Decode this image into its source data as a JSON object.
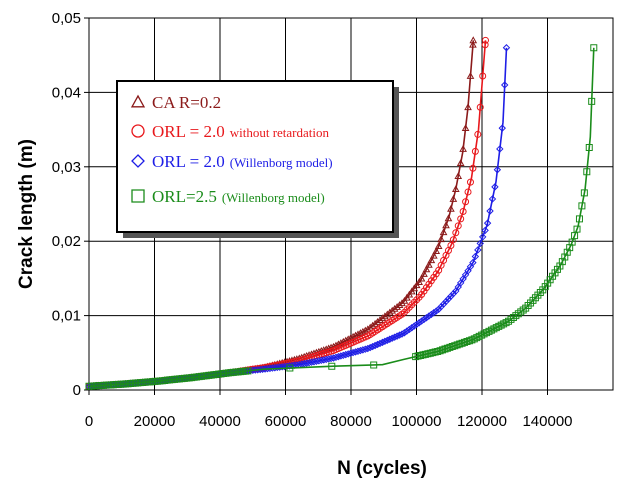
{
  "chart_data": {
    "type": "line",
    "xlabel": "N (cycles)",
    "ylabel": "Crack length (m)",
    "xlim": [
      0,
      150000
    ],
    "ylim": [
      0,
      0.05
    ],
    "x_ticks": [
      "0",
      "20000",
      "40000",
      "60000",
      "80000",
      "100000",
      "120000",
      "140000"
    ],
    "y_ticks": [
      "0",
      "0,01",
      "0,02",
      "0,03",
      "0,04",
      "0,05"
    ],
    "grid": true,
    "legend_position": "upper-left",
    "series": [
      {
        "name": "CA R=0.2",
        "legend_main": "CA  R=0.2",
        "legend_small": "",
        "color": "#8b1a1a",
        "marker": "triangle",
        "x": [
          0,
          10000,
          20000,
          30000,
          40000,
          50000,
          60000,
          70000,
          80000,
          90000,
          95000,
          100000,
          103000,
          105000,
          107000,
          108500,
          110000
        ],
        "y": [
          0.0005,
          0.0008,
          0.0012,
          0.0017,
          0.0023,
          0.003,
          0.0042,
          0.0058,
          0.0082,
          0.0118,
          0.0148,
          0.0192,
          0.0232,
          0.027,
          0.032,
          0.038,
          0.047
        ]
      },
      {
        "name": "ORL = 2.0 without retardation",
        "legend_main": "ORL = 2.0",
        "legend_small": "without retardation",
        "color": "#e8181c",
        "marker": "circle",
        "x": [
          0,
          10000,
          20000,
          30000,
          40000,
          50000,
          60000,
          70000,
          80000,
          90000,
          95000,
          100000,
          104000,
          107000,
          109500,
          111500,
          113500
        ],
        "y": [
          0.0005,
          0.0008,
          0.0012,
          0.0017,
          0.0023,
          0.003,
          0.0039,
          0.0053,
          0.0073,
          0.0103,
          0.0127,
          0.016,
          0.0198,
          0.0238,
          0.0285,
          0.035,
          0.047
        ]
      },
      {
        "name": "ORL = 2.0 (Willenborg model)",
        "legend_main": "ORL = 2.0",
        "legend_small": "(Willenborg model)",
        "color": "#1e1ee6",
        "marker": "diamond",
        "x": [
          0,
          10000,
          20000,
          30000,
          40000,
          50000,
          60000,
          70000,
          80000,
          90000,
          100000,
          105000,
          110000,
          114000,
          116500,
          118500,
          119500
        ],
        "y": [
          0.0005,
          0.0008,
          0.0012,
          0.0017,
          0.0023,
          0.0028,
          0.0034,
          0.0043,
          0.0056,
          0.0076,
          0.0108,
          0.0133,
          0.0172,
          0.0222,
          0.028,
          0.036,
          0.046
        ]
      },
      {
        "name": "ORL=2.5 (Willenborg model)",
        "legend_main": "ORL=2.5",
        "legend_small": "(Willenborg model)",
        "color": "#1a8c1a",
        "marker": "square",
        "x": [
          0,
          10000,
          20000,
          30000,
          40000,
          50000,
          60000,
          70000,
          84000,
          90000,
          100000,
          110000,
          120000,
          125000,
          130000,
          135000,
          138000,
          140000,
          142000,
          143500,
          144500
        ],
        "y": [
          0.0005,
          0.0008,
          0.0012,
          0.0017,
          0.0023,
          0.0028,
          0.003,
          0.0032,
          0.0034,
          0.0041,
          0.0052,
          0.0068,
          0.0092,
          0.011,
          0.0135,
          0.0168,
          0.0195,
          0.022,
          0.027,
          0.034,
          0.046
        ]
      }
    ]
  }
}
